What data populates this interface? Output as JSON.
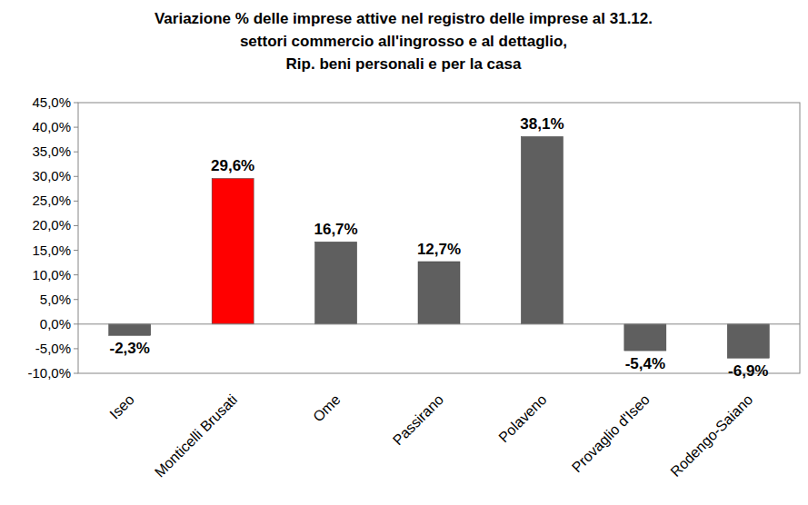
{
  "chart_data": {
    "type": "bar",
    "title": "Variazione % delle imprese attive nel registro delle imprese al 31.12.\nsettori commercio all'ingrosso e al dettaglio,\nRip. beni personali e per la casa",
    "categories": [
      "Iseo",
      "Monticelli Brusati",
      "Ome",
      "Passirano",
      "Polaveno",
      "Provaglio d'Iseo",
      "Rodengo-Saiano"
    ],
    "values": [
      -2.3,
      29.6,
      16.7,
      12.7,
      38.1,
      -5.4,
      -6.9
    ],
    "value_labels": [
      "-2,3%",
      "29,6%",
      "16,7%",
      "12,7%",
      "38,1%",
      "-5,4%",
      "-6,9%"
    ],
    "colors": [
      "#5f5f5f",
      "#ff0000",
      "#5f5f5f",
      "#5f5f5f",
      "#5f5f5f",
      "#5f5f5f",
      "#5f5f5f"
    ],
    "data_labels": true,
    "grid": false,
    "ylim": [
      -10,
      45
    ],
    "yticks": [
      {
        "value": -10,
        "label": "-10,0%"
      },
      {
        "value": -5,
        "label": "-5,0%"
      },
      {
        "value": 0,
        "label": "0,0%"
      },
      {
        "value": 5,
        "label": "5,0%"
      },
      {
        "value": 10,
        "label": "10,0%"
      },
      {
        "value": 15,
        "label": "15,0%"
      },
      {
        "value": 20,
        "label": "20,0%"
      },
      {
        "value": 25,
        "label": "25,0%"
      },
      {
        "value": 30,
        "label": "30,0%"
      },
      {
        "value": 35,
        "label": "35,0%"
      },
      {
        "value": 40,
        "label": "40,0%"
      },
      {
        "value": 45,
        "label": "45,0%"
      }
    ]
  }
}
